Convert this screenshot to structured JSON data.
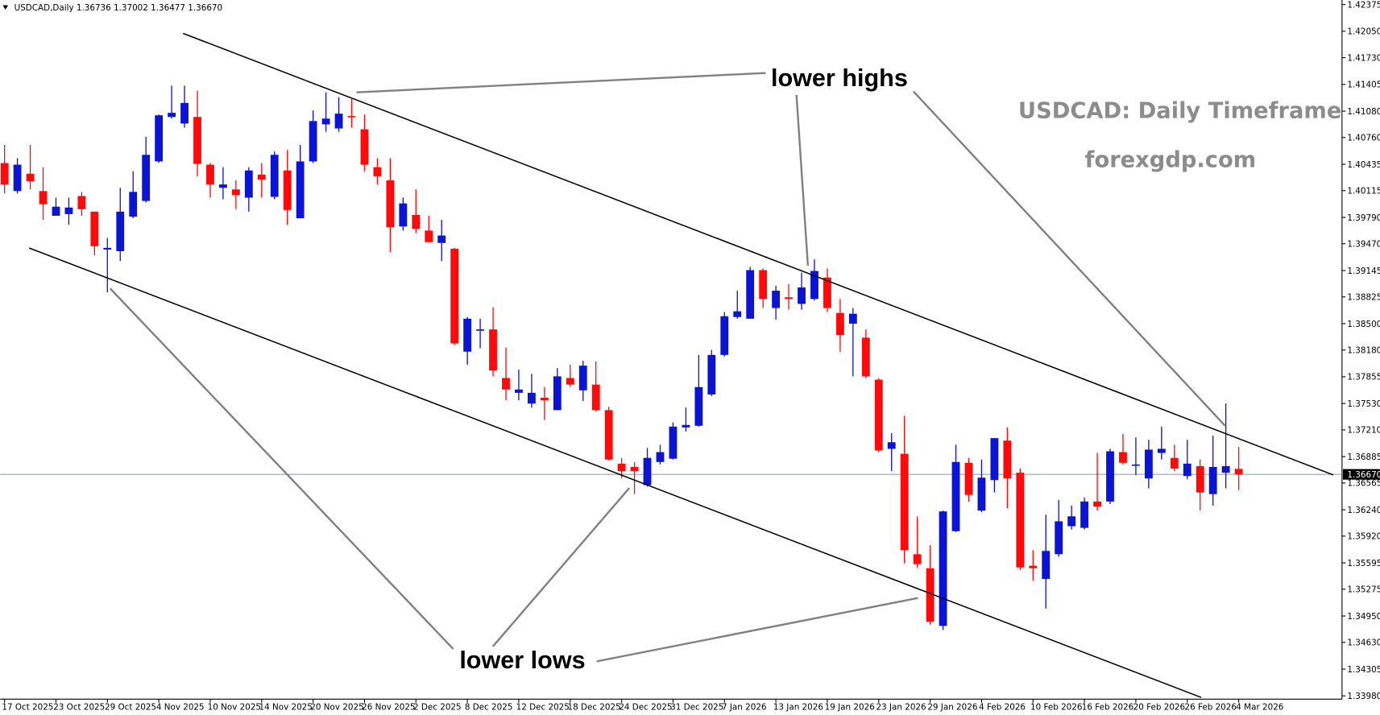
{
  "chart_data": {
    "type": "candlestick",
    "header": "USDCAD,Daily 1.36736 1.37002 1.36477 1.36670",
    "title": "USDCAD: Daily Timeframe",
    "subtitle": "forexgdp.com",
    "annotations": [
      "lower highs",
      "lower lows"
    ],
    "up_color": "#0a14d2",
    "down_color": "#ff0a0a",
    "categories": [
      "17 Oct 2025",
      null,
      null,
      null,
      "23 Oct 2025",
      null,
      null,
      null,
      "29 Oct 2025",
      null,
      null,
      null,
      "4 Nov 2025",
      null,
      null,
      null,
      "10 Nov 2025",
      null,
      null,
      null,
      "14 Nov 2025",
      null,
      null,
      null,
      "20 Nov 2025",
      null,
      null,
      null,
      "26 Nov 2025",
      null,
      null,
      null,
      "2 Dec 2025",
      null,
      null,
      null,
      "8 Dec 2025",
      null,
      null,
      null,
      "12 Dec 2025",
      null,
      null,
      null,
      "18 Dec 2025",
      null,
      null,
      null,
      "24 Dec 2025",
      null,
      null,
      null,
      "31 Dec 2025",
      null,
      null,
      null,
      "7 Jan 2026",
      null,
      null,
      null,
      "13 Jan 2026",
      null,
      null,
      null,
      "19 Jan 2026",
      null,
      null,
      null,
      "23 Jan 2026",
      null,
      null,
      null,
      "29 Jan 2026",
      null,
      null,
      null,
      "4 Feb 2026",
      null,
      null,
      null,
      "10 Feb 2026",
      null,
      null,
      null,
      "16 Feb 2026",
      null,
      null,
      null,
      "20 Feb 2026",
      null,
      null,
      null,
      "26 Feb 2026",
      null,
      null,
      null,
      "4 Mar 2026"
    ],
    "open": [
      1.4045,
      1.4011,
      1.4032,
      1.4011,
      1.3981,
      1.3983,
      1.4005,
      1.3986,
      1.394,
      1.3938,
      1.398,
      1.3999,
      1.4047,
      1.4101,
      1.4093,
      1.4101,
      1.4043,
      1.4015,
      1.4013,
      1.4003,
      1.4031,
      1.4004,
      1.4036,
      1.3978,
      1.4047,
      1.4092,
      1.4087,
      1.4102,
      1.4086,
      1.404,
      1.4024,
      1.3968,
      1.3982,
      1.3963,
      1.3948,
      1.3941,
      1.3816,
      1.3842,
      1.3843,
      1.3784,
      1.3766,
      1.3753,
      1.376,
      1.3745,
      1.3784,
      1.3769,
      1.3776,
      1.3745,
      1.368,
      1.3676,
      1.3654,
      1.3682,
      1.3686,
      1.3724,
      1.3726,
      1.3764,
      1.3812,
      1.3858,
      1.3856,
      1.3915,
      1.3869,
      1.3882,
      1.3874,
      1.388,
      1.3906,
      1.3863,
      1.385,
      1.3833,
      1.3782,
      1.3698,
      1.3692,
      1.357,
      1.3553,
      1.3483,
      1.3598,
      1.3681,
      1.3623,
      1.366,
      1.3708,
      1.3669,
      1.3556,
      1.354,
      1.357,
      1.3604,
      1.3602,
      1.3634,
      1.3634,
      1.3694,
      1.3678,
      1.3662,
      1.3693,
      1.3687,
      1.3665,
      1.3677,
      1.3643,
      1.3669,
      1.36736
    ],
    "high": [
      1.4067,
      1.4051,
      1.4067,
      1.404,
      1.4003,
      1.4003,
      1.401,
      1.3986,
      1.3954,
      1.4015,
      1.4035,
      1.4077,
      1.4104,
      1.4139,
      1.4139,
      1.4133,
      1.4045,
      1.404,
      1.4024,
      1.404,
      1.4045,
      1.4059,
      1.4061,
      1.4067,
      1.4109,
      1.4131,
      1.4125,
      1.4123,
      1.4104,
      1.4051,
      1.4051,
      1.4003,
      1.4013,
      1.3981,
      1.3976,
      1.3942,
      1.3858,
      1.3856,
      1.387,
      1.3821,
      1.3794,
      1.3789,
      1.3773,
      1.3796,
      1.38,
      1.3805,
      1.3804,
      1.3749,
      1.3687,
      1.3682,
      1.3699,
      1.3703,
      1.373,
      1.3748,
      1.3812,
      1.3818,
      1.3864,
      1.389,
      1.3919,
      1.3917,
      1.3896,
      1.3898,
      1.3912,
      1.3928,
      1.3917,
      1.388,
      1.3869,
      1.3843,
      1.3784,
      1.3717,
      1.3738,
      1.3616,
      1.3581,
      1.3623,
      1.3703,
      1.3687,
      1.3685,
      1.3711,
      1.3724,
      1.3674,
      1.3575,
      1.3618,
      1.3636,
      1.3629,
      1.3639,
      1.3693,
      1.3698,
      1.3716,
      1.3712,
      1.3709,
      1.3725,
      1.3703,
      1.3709,
      1.3685,
      1.3714,
      1.3753,
      1.37002
    ],
    "low": [
      1.4008,
      1.4008,
      1.4013,
      1.3976,
      1.3981,
      1.397,
      1.3981,
      1.3933,
      1.3888,
      1.3926,
      1.3978,
      1.3997,
      1.4045,
      1.4099,
      1.4088,
      1.4029,
      1.4003,
      1.4001,
      1.3989,
      1.3986,
      1.4003,
      1.4001,
      1.397,
      1.3978,
      1.4045,
      1.4083,
      1.4083,
      1.4088,
      1.4035,
      1.4019,
      1.3937,
      1.3963,
      1.396,
      1.3949,
      1.3926,
      1.3824,
      1.38,
      1.382,
      1.3786,
      1.3757,
      1.3757,
      1.3748,
      1.3733,
      1.3745,
      1.3773,
      1.3756,
      1.3743,
      1.3684,
      1.3662,
      1.3643,
      1.3652,
      1.3679,
      1.3685,
      1.3719,
      1.3725,
      1.3762,
      1.381,
      1.3856,
      1.3856,
      1.3869,
      1.3855,
      1.3867,
      1.3867,
      1.3878,
      1.3864,
      1.3816,
      1.3786,
      1.3784,
      1.3694,
      1.3671,
      1.3559,
      1.3554,
      1.3485,
      1.3478,
      1.3597,
      1.3634,
      1.3621,
      1.3645,
      1.3626,
      1.3551,
      1.3538,
      1.3504,
      1.3567,
      1.36,
      1.36,
      1.3623,
      1.3631,
      1.3679,
      1.3666,
      1.365,
      1.3685,
      1.3671,
      1.3661,
      1.3623,
      1.3629,
      1.365,
      1.36477
    ],
    "close": [
      1.4019,
      1.4043,
      1.4023,
      1.3995,
      1.3992,
      1.3991,
      1.3989,
      1.3944,
      1.3942,
      1.3986,
      1.401,
      1.4055,
      1.4103,
      1.4106,
      1.4118,
      1.4044,
      1.4019,
      1.4019,
      1.4006,
      1.4036,
      1.4025,
      1.4055,
      1.3988,
      1.4047,
      1.4096,
      1.4099,
      1.4105,
      1.4101,
      1.4043,
      1.4029,
      1.3967,
      1.3996,
      1.3965,
      1.3949,
      1.3957,
      1.3826,
      1.3856,
      1.3843,
      1.3793,
      1.377,
      1.377,
      1.3766,
      1.3757,
      1.3786,
      1.3776,
      1.3799,
      1.3745,
      1.3685,
      1.3671,
      1.3671,
      1.3687,
      1.3694,
      1.3725,
      1.3727,
      1.3773,
      1.3812,
      1.3859,
      1.3865,
      1.3915,
      1.388,
      1.389,
      1.388,
      1.3894,
      1.3914,
      1.3869,
      1.3836,
      1.3862,
      1.3786,
      1.3696,
      1.3706,
      1.3575,
      1.3558,
      1.3488,
      1.3622,
      1.3682,
      1.3642,
      1.3663,
      1.3711,
      1.3662,
      1.3554,
      1.3553,
      1.3574,
      1.361,
      1.3616,
      1.3634,
      1.3628,
      1.3695,
      1.3681,
      1.3679,
      1.3697,
      1.3698,
      1.3674,
      1.368,
      1.3645,
      1.3676,
      1.3677,
      1.3667
    ],
    "price_line": {
      "value": 1.3667,
      "label": "1.36670"
    },
    "ylim": [
      1.3394,
      1.4243
    ],
    "yticks": [
      1.42375,
      {
        "value": 1.4205,
        "label": "1.42050"
      },
      {
        "value": 1.4173,
        "label": "1.41730"
      },
      1.41405,
      {
        "value": 1.4108,
        "label": "1.41080"
      },
      {
        "value": 1.4076,
        "label": "1.40760"
      },
      1.40435,
      1.40115,
      {
        "value": 1.3979,
        "label": "1.39790"
      },
      {
        "value": 1.3947,
        "label": "1.39470"
      },
      1.39145,
      1.38825,
      {
        "value": 1.385,
        "label": "1.38500"
      },
      {
        "value": 1.3818,
        "label": "1.38180"
      },
      1.37855,
      {
        "value": 1.3753,
        "label": "1.37530"
      },
      {
        "value": 1.3721,
        "label": "1.37210"
      },
      1.36885,
      1.36565,
      {
        "value": 1.3624,
        "label": "1.36240"
      },
      {
        "value": 1.3592,
        "label": "1.35920"
      },
      1.35595,
      1.35275,
      {
        "value": 1.3495,
        "label": "1.34950"
      },
      {
        "value": 1.3463,
        "label": "1.34630"
      },
      1.34305,
      {
        "value": 1.3398,
        "label": "1.33980"
      }
    ]
  }
}
